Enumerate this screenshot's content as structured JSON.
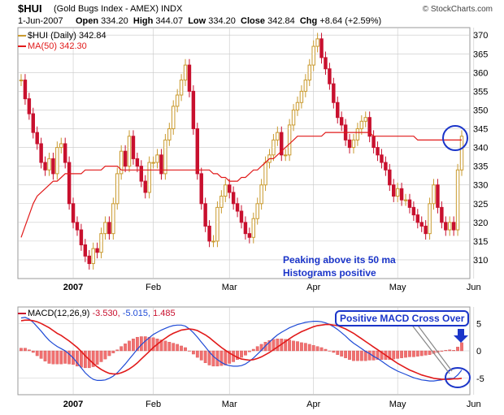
{
  "header": {
    "symbol": "$HUI",
    "subtitle": "(Gold Bugs Index - AMEX) INDX",
    "brand": "© StockCharts.com",
    "date": "1-Jun-2007",
    "open_label": "Open",
    "open": "334.20",
    "high_label": "High",
    "high": "344.07",
    "low_label": "Low",
    "low": "334.20",
    "close_label": "Close",
    "close": "342.84",
    "chg_label": "Chg",
    "chg": "+8.64 (+2.59%)"
  },
  "legend": {
    "price_label": "$HUI (Daily)",
    "price_value": "342.84",
    "ma_label": "MA(50)",
    "ma_value": "342.30",
    "macd_label": "MACD(12,26,9)",
    "macd_value": "-3.530,",
    "signal_value": "-5.015,",
    "hist_value": "1.485"
  },
  "annotations": {
    "line1": "Peaking above its 50 ma",
    "line2": "Histograms positive",
    "callout": "Positive MACD Cross Over"
  },
  "colors": {
    "up": "#c99a2e",
    "down": "#c8102e",
    "ma": "#e11a1a",
    "macd": "#1f4bd6",
    "signal": "#e11a1a",
    "hist": "#f07070",
    "grid": "#c8c8c8",
    "accent": "#1b35c9"
  },
  "chart_data": [
    {
      "type": "candlestick",
      "title": "$HUI (Daily)",
      "ylim": [
        305,
        372
      ],
      "y_ticks": [
        310,
        315,
        320,
        325,
        330,
        335,
        340,
        345,
        350,
        355,
        360,
        365,
        370
      ],
      "x_labels": [
        "2007",
        "Feb",
        "Mar",
        "Apr",
        "May",
        "Jun"
      ],
      "x_label_index": [
        13,
        33,
        52,
        73,
        94,
        113
      ],
      "grid": true,
      "series": [
        {
          "name": "$HUI (Daily)",
          "values": [
            358,
            353,
            349,
            344,
            341,
            336,
            334,
            337,
            333,
            340,
            341,
            336,
            325,
            320,
            318,
            314,
            311,
            309,
            313,
            312,
            317,
            320,
            317,
            325,
            333,
            339,
            335,
            343,
            337,
            335,
            331,
            328,
            336,
            336,
            338,
            333,
            342,
            345,
            351,
            354,
            358,
            362,
            355,
            345,
            333,
            325,
            319,
            315,
            315,
            324,
            327,
            330,
            328,
            325,
            323,
            320,
            317,
            316,
            321,
            325,
            330,
            336,
            338,
            342,
            344,
            338,
            338,
            346,
            350,
            352,
            355,
            358,
            362,
            367,
            369,
            364,
            361,
            357,
            352,
            348,
            346,
            342,
            340,
            342,
            345,
            347,
            348,
            343,
            340,
            338,
            336,
            334,
            330,
            327,
            329,
            326,
            326,
            324,
            322,
            320,
            319,
            317,
            325,
            330,
            324,
            320,
            318,
            320,
            318,
            334,
            343
          ]
        },
        {
          "name": "MA(50)",
          "values": [
            316,
            319,
            322,
            325,
            327,
            328,
            329,
            330,
            331,
            331,
            332,
            333,
            333,
            333,
            333,
            333,
            334,
            334,
            334,
            334,
            334,
            335,
            335,
            335,
            335,
            334,
            334,
            334,
            334,
            334,
            334,
            334,
            334,
            334,
            334,
            334,
            334,
            334,
            334,
            334,
            334,
            334,
            334,
            334,
            334,
            334,
            334,
            334,
            333,
            333,
            332,
            332,
            331,
            331,
            331,
            332,
            332,
            333,
            334,
            334,
            335,
            336,
            337,
            337,
            338,
            339,
            340,
            341,
            342,
            343,
            343,
            343,
            343,
            343,
            343,
            343,
            344,
            344,
            344,
            344,
            344,
            344,
            344,
            344,
            344,
            344,
            344,
            344,
            343,
            343,
            343,
            343,
            343,
            343,
            343,
            343,
            343,
            343,
            343,
            342,
            342,
            342,
            342,
            342,
            342,
            342,
            342,
            342,
            342,
            342,
            342
          ]
        }
      ]
    },
    {
      "type": "line",
      "title": "MACD(12,26,9)",
      "ylim": [
        -8,
        8
      ],
      "y_ticks": [
        -5,
        0,
        5
      ],
      "x_labels": [
        "2007",
        "Feb",
        "Mar",
        "Apr",
        "May",
        "Jun"
      ],
      "grid": true,
      "series": [
        {
          "name": "MACD",
          "values": [
            6.0,
            6.1,
            5.8,
            5.2,
            4.4,
            3.6,
            2.7,
            1.9,
            1.3,
            0.8,
            0.4,
            0.0,
            -0.6,
            -1.3,
            -2.2,
            -3.1,
            -4.0,
            -4.7,
            -5.2,
            -5.4,
            -5.4,
            -5.3,
            -5.0,
            -4.6,
            -4.0,
            -3.2,
            -2.4,
            -1.5,
            -0.6,
            0.3,
            1.1,
            1.8,
            2.4,
            3.0,
            3.4,
            3.8,
            4.1,
            4.4,
            4.6,
            4.7,
            4.7,
            4.5,
            4.0,
            3.3,
            2.5,
            1.6,
            0.7,
            -0.2,
            -1.0,
            -1.6,
            -2.1,
            -2.5,
            -2.7,
            -2.8,
            -2.8,
            -2.7,
            -2.4,
            -1.9,
            -1.3,
            -0.6,
            0.1,
            0.9,
            1.6,
            2.3,
            2.9,
            3.4,
            3.8,
            4.2,
            4.5,
            4.8,
            5.0,
            5.2,
            5.3,
            5.4,
            5.4,
            5.3,
            5.1,
            4.8,
            4.4,
            3.9,
            3.3,
            2.7,
            2.0,
            1.4,
            0.9,
            0.4,
            -0.1,
            -0.5,
            -1.0,
            -1.4,
            -1.9,
            -2.4,
            -2.9,
            -3.3,
            -3.7,
            -4.0,
            -4.3,
            -4.6,
            -4.9,
            -5.1,
            -5.3,
            -5.4,
            -5.5,
            -5.5,
            -5.4,
            -5.3,
            -5.1,
            -5.0,
            -5.0,
            -4.4,
            -3.5
          ]
        },
        {
          "name": "Signal",
          "values": [
            5.5,
            5.6,
            5.6,
            5.5,
            5.3,
            5.0,
            4.6,
            4.2,
            3.7,
            3.2,
            2.8,
            2.3,
            1.8,
            1.2,
            0.6,
            -0.1,
            -0.9,
            -1.6,
            -2.3,
            -2.9,
            -3.4,
            -3.8,
            -4.1,
            -4.2,
            -4.2,
            -4.0,
            -3.7,
            -3.3,
            -2.8,
            -2.2,
            -1.5,
            -0.8,
            -0.1,
            0.6,
            1.2,
            1.8,
            2.3,
            2.8,
            3.2,
            3.5,
            3.8,
            3.9,
            4.0,
            3.9,
            3.7,
            3.3,
            2.9,
            2.4,
            1.8,
            1.2,
            0.6,
            0.1,
            -0.4,
            -0.8,
            -1.2,
            -1.5,
            -1.6,
            -1.7,
            -1.6,
            -1.4,
            -1.1,
            -0.7,
            -0.3,
            0.2,
            0.7,
            1.2,
            1.7,
            2.2,
            2.7,
            3.1,
            3.5,
            3.8,
            4.1,
            4.4,
            4.6,
            4.7,
            4.8,
            4.8,
            4.7,
            4.6,
            4.3,
            4.0,
            3.6,
            3.2,
            2.7,
            2.2,
            1.7,
            1.2,
            0.7,
            0.2,
            -0.3,
            -0.8,
            -1.3,
            -1.8,
            -2.3,
            -2.7,
            -3.1,
            -3.5,
            -3.8,
            -4.1,
            -4.4,
            -4.6,
            -4.8,
            -5.0,
            -5.1,
            -5.2,
            -5.2,
            -5.2,
            -5.1,
            -5.1,
            -5.0
          ]
        }
      ]
    }
  ]
}
